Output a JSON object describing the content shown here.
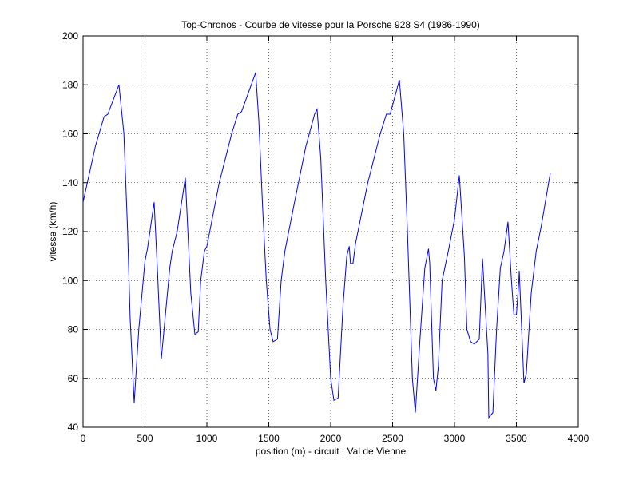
{
  "chart_data": {
    "type": "line",
    "title": "Top-Chronos - Courbe de vitesse pour la Porsche 928 S4 (1986-1990)",
    "xlabel": "position (m) - circuit : Val de Vienne",
    "ylabel": "vitesse (km/h)",
    "x": [
      0,
      100,
      170,
      200,
      290,
      330,
      360,
      380,
      413,
      450,
      500,
      520,
      574,
      600,
      632,
      700,
      720,
      760,
      826,
      870,
      903,
      930,
      950,
      980,
      1000,
      1100,
      1200,
      1250,
      1280,
      1394,
      1420,
      1450,
      1480,
      1510,
      1535,
      1570,
      1600,
      1630,
      1700,
      1800,
      1870,
      1890,
      1920,
      1960,
      2000,
      2026,
      2060,
      2100,
      2130,
      2150,
      2160,
      2180,
      2200,
      2300,
      2400,
      2450,
      2480,
      2555,
      2590,
      2620,
      2660,
      2684,
      2720,
      2760,
      2790,
      2800,
      2830,
      2850,
      2870,
      2900,
      2950,
      3000,
      3039,
      3080,
      3100,
      3130,
      3160,
      3200,
      3226,
      3270,
      3277,
      3310,
      3340,
      3370,
      3400,
      3432,
      3460,
      3480,
      3500,
      3520,
      3523,
      3561,
      3580,
      3620,
      3660,
      3700,
      3774
    ],
    "values": [
      132,
      155,
      167,
      168,
      180,
      160,
      120,
      85,
      50,
      80,
      108,
      113,
      132,
      105,
      68,
      105,
      112,
      120,
      142,
      95,
      78,
      79,
      100,
      112,
      114,
      140,
      160,
      168,
      169,
      185,
      165,
      130,
      100,
      80,
      75,
      76,
      100,
      112,
      130,
      155,
      168,
      170,
      150,
      100,
      60,
      51,
      52,
      90,
      110,
      114,
      107,
      107,
      115,
      140,
      160,
      168,
      168,
      182,
      160,
      120,
      60,
      46,
      75,
      105,
      113,
      107,
      60,
      55,
      65,
      100,
      112,
      125,
      143,
      110,
      80,
      75,
      74,
      76,
      109,
      70,
      44,
      46,
      80,
      105,
      112,
      124,
      100,
      86,
      86,
      100,
      104,
      58,
      62,
      95,
      112,
      122,
      144
    ],
    "color": "#0000ff",
    "xlim": [
      0,
      4000
    ],
    "xticks": [
      0,
      500,
      1000,
      1500,
      2000,
      2500,
      3000,
      3500,
      4000
    ],
    "ylim": [
      40,
      200
    ],
    "yticks": [
      40,
      60,
      80,
      100,
      120,
      140,
      160,
      180,
      200
    ],
    "grid": true
  }
}
